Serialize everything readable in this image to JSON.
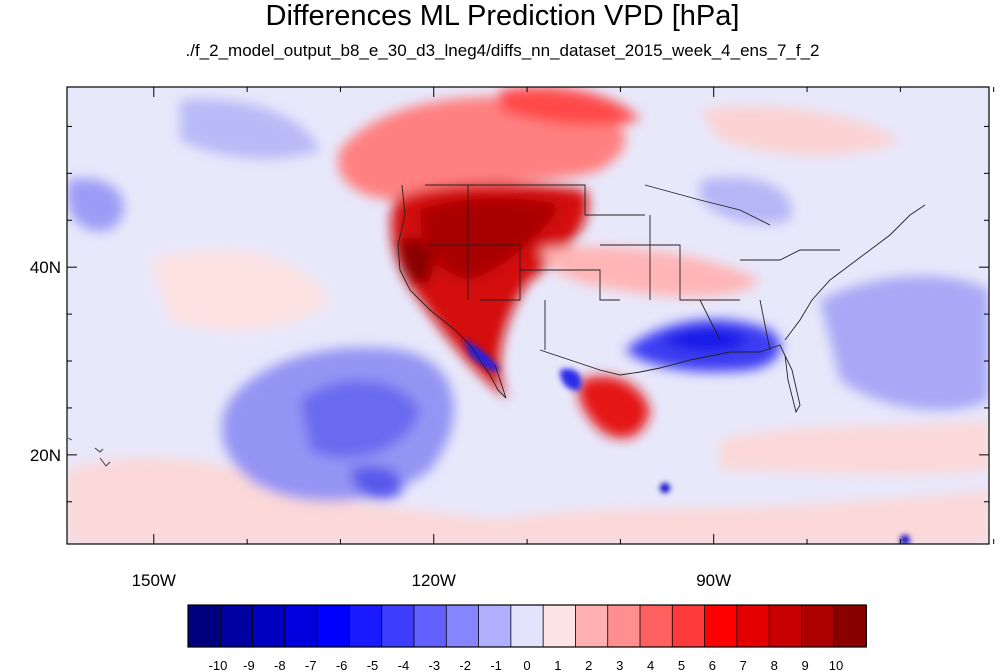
{
  "title": "Differences ML Prediction VPD [hPa]",
  "subtitle": "./f_2_model_output_b8_e_30_d3_lneg4/diffs_nn_dataset_2015_week_4_ens_7_f_2",
  "map": {
    "lon_ticks": [
      {
        "lon": -150,
        "label": "150W"
      },
      {
        "lon": -120,
        "label": "120W"
      },
      {
        "lon": -90,
        "label": "90W"
      }
    ],
    "lat_ticks": [
      {
        "lat": 40,
        "label": "40N"
      },
      {
        "lat": 20,
        "label": "20N"
      }
    ],
    "lon_range": [
      -159.3,
      -60.5
    ],
    "lat_range": [
      10.5,
      59.2
    ]
  },
  "colorbar": {
    "labels": [
      "-10",
      "-9",
      "-8",
      "-7",
      "-6",
      "-5",
      "-4",
      "-3",
      "-2",
      "-1",
      "0",
      "1",
      "2",
      "3",
      "4",
      "5",
      "6",
      "7",
      "8",
      "9",
      "10"
    ],
    "colors": [
      "#00007f",
      "#0000a0",
      "#0000c0",
      "#0000df",
      "#0000ff",
      "#1a1aff",
      "#3d3dff",
      "#6161ff",
      "#8585ff",
      "#b0b0ff",
      "#e3e3fb",
      "#fde4e4",
      "#ffb1b1",
      "#ff8f8f",
      "#ff6060",
      "#ff3a3a",
      "#ff0000",
      "#e50000",
      "#c90000",
      "#aa0000",
      "#8a0000"
    ]
  }
}
